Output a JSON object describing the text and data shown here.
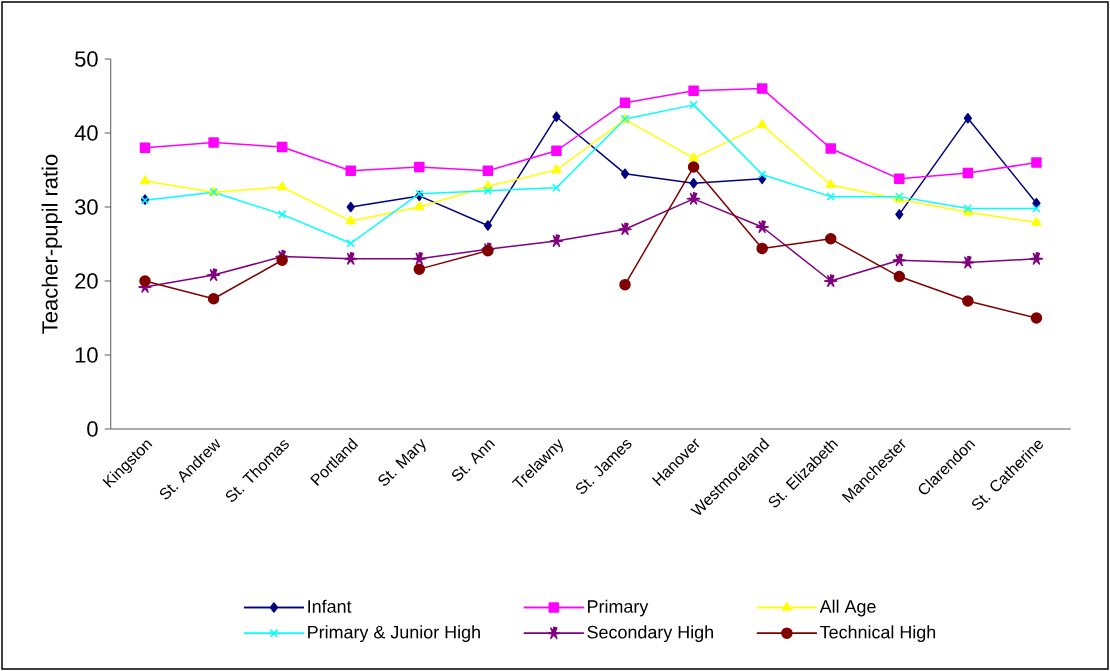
{
  "chart_data": {
    "type": "line",
    "ylabel": "Teacher-pupil ratio",
    "categories": [
      "Kingston",
      "St. Andrew",
      "St. Thomas",
      "Portland",
      "St. Mary",
      "St. Ann",
      "Trelawny",
      "St. James",
      "Hanover",
      "Westmoreland",
      "St. Elizabeth",
      "Manchester",
      "Clarendon",
      "St. Catherine"
    ],
    "series": [
      {
        "name": "Infant",
        "color": "#000080",
        "marker": "diamond",
        "values": [
          31,
          null,
          null,
          30,
          31.5,
          27.5,
          42.2,
          34.5,
          33.2,
          33.8,
          null,
          29,
          42,
          30.5
        ]
      },
      {
        "name": "Primary",
        "color": "#ff00ff",
        "marker": "square",
        "values": [
          38,
          38.7,
          38.1,
          34.9,
          35.4,
          34.9,
          37.6,
          44.1,
          45.7,
          46,
          37.9,
          33.8,
          34.6,
          36
        ]
      },
      {
        "name": "All Age",
        "color": "#ffff00",
        "marker": "triangle",
        "values": [
          33.5,
          32,
          32.7,
          28.1,
          30,
          32.8,
          35,
          41.8,
          36.6,
          41.1,
          33,
          31,
          29.3,
          27.9
        ]
      },
      {
        "name": "Primary & Junior High",
        "color": "#00ffff",
        "marker": "cross",
        "values": [
          30.9,
          32,
          29,
          25.1,
          31.8,
          32.2,
          32.6,
          41.9,
          43.8,
          34.4,
          31.4,
          31.4,
          29.8,
          29.8
        ]
      },
      {
        "name": "Secondary High",
        "color": "#800080",
        "marker": "star",
        "values": [
          19.2,
          20.8,
          23.3,
          23,
          23,
          24.3,
          25.4,
          27,
          31.1,
          27.3,
          20,
          22.8,
          22.5,
          23
        ]
      },
      {
        "name": "Technical High",
        "color": "#800000",
        "marker": "circle",
        "values": [
          20,
          17.6,
          22.8,
          null,
          21.6,
          24.1,
          null,
          19.5,
          35.4,
          24.4,
          25.7,
          20.6,
          17.3,
          15
        ]
      }
    ],
    "ylim": [
      0,
      50
    ],
    "yticks": [
      0,
      10,
      20,
      30,
      40,
      50
    ],
    "grid": false,
    "legend": "bottom"
  }
}
